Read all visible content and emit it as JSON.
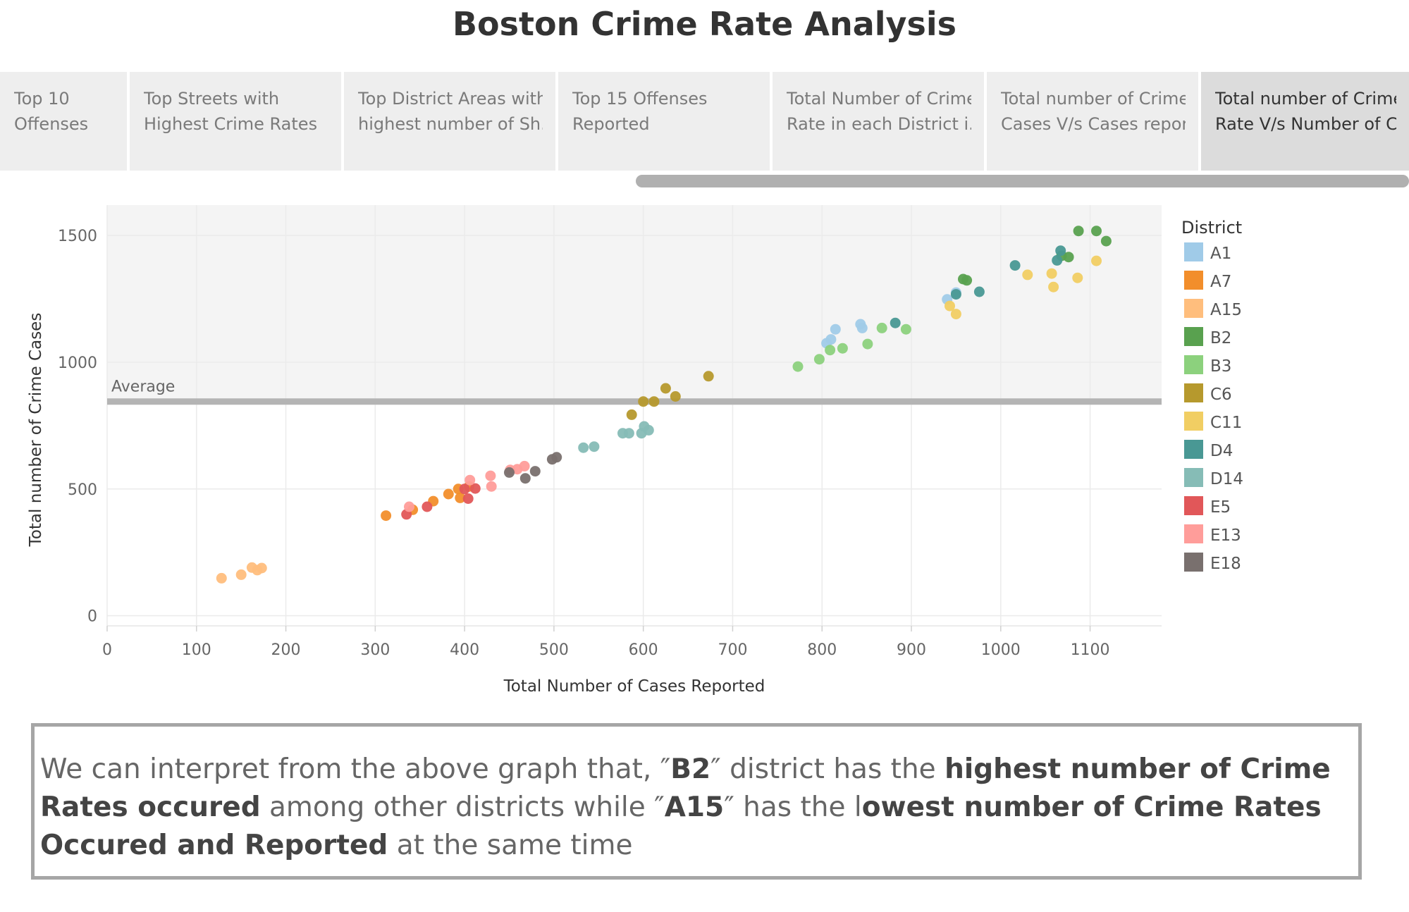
{
  "page_title": "Boston Crime Rate Analysis",
  "tabs": [
    {
      "line1": "Top 10",
      "line2": "Offenses",
      "active": false
    },
    {
      "line1": "Top Streets with",
      "line2": "Highest Crime Rates",
      "active": false
    },
    {
      "line1": "Top District Areas with",
      "line2": "highest number of Sh..",
      "active": false
    },
    {
      "line1": "Top 15 Offenses",
      "line2": "Reported",
      "active": false
    },
    {
      "line1": "Total Number of Crime",
      "line2": "Rate in each District i..",
      "active": false
    },
    {
      "line1": "Total number of Crime",
      "line2": "Cases V/s Cases repor..",
      "active": false
    },
    {
      "line1": "Total number of Crime",
      "line2": "Rate V/s Number of C..",
      "active": true
    }
  ],
  "colors": {
    "A1": "#a0cbe8",
    "A7": "#f28e2b",
    "A15": "#ffbe7d",
    "B2": "#59a14f",
    "B3": "#8cd17d",
    "C6": "#b6992d",
    "C11": "#f1ce63",
    "D4": "#499894",
    "D14": "#86bcb6",
    "E5": "#e15759",
    "E13": "#ff9d9a",
    "E18": "#79706e",
    "average_band": "#f4f4f4",
    "average_line": "#b4b4b4"
  },
  "chart_data": {
    "type": "scatter",
    "title": "",
    "xlabel": "Total Number of Cases Reported",
    "ylabel": "Total number of Crime Cases",
    "xlim": [
      0,
      1180
    ],
    "ylim": [
      -40,
      1620
    ],
    "x_ticks": [
      0,
      100,
      200,
      300,
      400,
      500,
      600,
      700,
      800,
      900,
      1000,
      1100
    ],
    "y_ticks": [
      0,
      500,
      1000,
      1500
    ],
    "average": {
      "label": "Average",
      "value": 845
    },
    "legend_title": "District",
    "legend_position": "right",
    "series": [
      {
        "name": "A1",
        "points": [
          [
            805,
            1075
          ],
          [
            810,
            1090
          ],
          [
            815,
            1130
          ],
          [
            843,
            1150
          ],
          [
            845,
            1135
          ],
          [
            940,
            1248
          ],
          [
            950,
            1275
          ]
        ]
      },
      {
        "name": "A7",
        "points": [
          [
            312,
            395
          ],
          [
            342,
            418
          ],
          [
            365,
            452
          ],
          [
            382,
            480
          ],
          [
            393,
            500
          ],
          [
            405,
            510
          ],
          [
            395,
            465
          ]
        ]
      },
      {
        "name": "A15",
        "points": [
          [
            128,
            148
          ],
          [
            150,
            162
          ],
          [
            162,
            190
          ],
          [
            168,
            180
          ],
          [
            173,
            188
          ]
        ]
      },
      {
        "name": "B2",
        "points": [
          [
            958,
            1328
          ],
          [
            962,
            1323
          ],
          [
            1068,
            1420
          ],
          [
            1076,
            1415
          ],
          [
            1087,
            1518
          ],
          [
            1107,
            1518
          ],
          [
            1118,
            1478
          ]
        ]
      },
      {
        "name": "B3",
        "points": [
          [
            773,
            983
          ],
          [
            797,
            1012
          ],
          [
            809,
            1048
          ],
          [
            823,
            1055
          ],
          [
            851,
            1072
          ],
          [
            867,
            1135
          ],
          [
            894,
            1130
          ]
        ]
      },
      {
        "name": "C6",
        "points": [
          [
            587,
            793
          ],
          [
            600,
            845
          ],
          [
            612,
            845
          ],
          [
            625,
            897
          ],
          [
            636,
            865
          ],
          [
            673,
            945
          ]
        ]
      },
      {
        "name": "C11",
        "points": [
          [
            943,
            1222
          ],
          [
            950,
            1190
          ],
          [
            1030,
            1345
          ],
          [
            1057,
            1350
          ],
          [
            1059,
            1297
          ],
          [
            1086,
            1333
          ],
          [
            1107,
            1400
          ]
        ]
      },
      {
        "name": "D4",
        "points": [
          [
            882,
            1155
          ],
          [
            950,
            1268
          ],
          [
            976,
            1278
          ],
          [
            1016,
            1382
          ],
          [
            1063,
            1402
          ],
          [
            1067,
            1440
          ]
        ]
      },
      {
        "name": "D14",
        "points": [
          [
            533,
            663
          ],
          [
            545,
            667
          ],
          [
            577,
            720
          ],
          [
            584,
            720
          ],
          [
            598,
            720
          ],
          [
            601,
            747
          ],
          [
            606,
            732
          ]
        ]
      },
      {
        "name": "E5",
        "points": [
          [
            335,
            400
          ],
          [
            358,
            430
          ],
          [
            400,
            500
          ],
          [
            404,
            462
          ],
          [
            412,
            502
          ]
        ]
      },
      {
        "name": "E13",
        "points": [
          [
            338,
            430
          ],
          [
            406,
            535
          ],
          [
            429,
            552
          ],
          [
            430,
            510
          ],
          [
            451,
            575
          ],
          [
            459,
            578
          ],
          [
            467,
            590
          ]
        ]
      },
      {
        "name": "E18",
        "points": [
          [
            450,
            565
          ],
          [
            468,
            542
          ],
          [
            479,
            570
          ],
          [
            498,
            617
          ],
          [
            503,
            625
          ]
        ]
      }
    ]
  },
  "insight": {
    "t1": "We can interpret from the above graph that, ″",
    "b1": "B2",
    "t2": "″ district has the ",
    "b2": "highest number of Crime Rates occured",
    "t3": " among other districts while ″",
    "b3": "A15",
    "t4": "″ has the l",
    "b4": "owest number of Crime Rates Occured and Reported",
    "t5": " at the same time"
  }
}
